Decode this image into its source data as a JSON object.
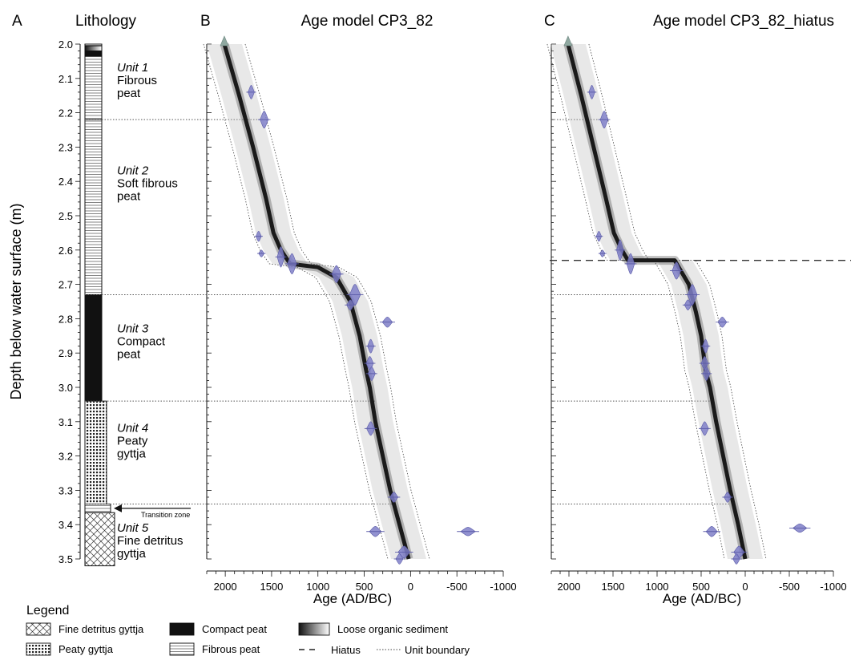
{
  "panel_letters": {
    "a": "A",
    "b": "B",
    "c": "C"
  },
  "lithology": {
    "title": "Lithology",
    "units": [
      {
        "name": "Unit 1",
        "desc": [
          "Fibrous",
          "peat"
        ],
        "label_depth": 2.08,
        "top": 2.0,
        "bottom": 2.22,
        "fill": "fibrous"
      },
      {
        "name": "Unit 2",
        "desc": [
          "Soft fibrous",
          "peat"
        ],
        "label_depth": 2.38,
        "top": 2.22,
        "bottom": 2.73,
        "fill": "fibrous"
      },
      {
        "name": "Unit 3",
        "desc": [
          "Compact",
          "peat"
        ],
        "label_depth": 2.84,
        "top": 2.73,
        "bottom": 3.04,
        "fill": "compact"
      },
      {
        "name": "Unit 4",
        "desc": [
          "Peaty",
          "gyttja"
        ],
        "label_depth": 3.13,
        "top": 3.04,
        "bottom": 3.34,
        "fill": "peaty"
      },
      {
        "name": "Unit 5",
        "desc": [
          "Fine detritus",
          "gyttja"
        ],
        "label_depth": 3.42,
        "top": 3.365,
        "bottom": 3.52,
        "fill": "fine"
      }
    ],
    "transition_zone": {
      "label": "Transition zone",
      "top": 3.34,
      "bottom": 3.365
    },
    "extra_layers": [
      {
        "top": 2.005,
        "bottom": 2.02,
        "fill": "loose"
      },
      {
        "top": 2.02,
        "bottom": 2.035,
        "fill": "compact"
      }
    ]
  },
  "legend": {
    "title": "Legend",
    "items": [
      {
        "label": "Fine detritus gyttja",
        "kind": "fine"
      },
      {
        "label": "Compact peat",
        "kind": "compact"
      },
      {
        "label": "Loose organic sediment",
        "kind": "loose"
      },
      {
        "label": "Peaty gyttja",
        "kind": "peaty"
      },
      {
        "label": "Fibrous peat",
        "kind": "fibrous"
      },
      {
        "label": "Hiatus",
        "kind": "hiatus"
      },
      {
        "label": "Unit boundary",
        "kind": "boundary"
      }
    ]
  },
  "colors": {
    "dates": "#7f7fc8",
    "dates_stroke": "#5b5ba8",
    "model": "#1a1a1a",
    "boundary": "#555555"
  },
  "chart_data": [
    {
      "type": "line",
      "title": "Age model CP3_82",
      "xlabel": "Age (AD/BC)",
      "ylabel": "Depth below water surface (m)",
      "xlim": [
        2200,
        -1000
      ],
      "ylim": [
        2.0,
        3.5
      ],
      "x_ticks": [
        2000,
        1500,
        1000,
        500,
        0,
        -500,
        -1000
      ],
      "x_tick_labels": [
        "2000",
        "1500",
        "1000",
        "500",
        "0",
        "-500",
        "-1000"
      ],
      "y_ticks": [
        2.0,
        2.1,
        2.2,
        2.3,
        2.4,
        2.5,
        2.6,
        2.7,
        2.8,
        2.9,
        3.0,
        3.1,
        3.2,
        3.3,
        3.4,
        3.5
      ],
      "y_tick_labels": [
        "2.0",
        "2.1",
        "2.2",
        "2.3",
        "2.4",
        "2.5",
        "2.6",
        "2.7",
        "2.8",
        "2.9",
        "3.0",
        "3.1",
        "3.2",
        "3.3",
        "3.4",
        "3.5"
      ],
      "unit_boundaries": [
        2.22,
        2.73,
        3.04,
        3.34
      ],
      "hiatus": null,
      "model_median": {
        "age": [
          2010,
          1850,
          1700,
          1560,
          1480,
          1400,
          1300,
          1000,
          800,
          650,
          550,
          480,
          440,
          380,
          300,
          220,
          120,
          20
        ],
        "depth": [
          2.0,
          2.15,
          2.3,
          2.45,
          2.55,
          2.6,
          2.64,
          2.65,
          2.68,
          2.75,
          2.85,
          2.95,
          3.0,
          3.1,
          3.2,
          3.3,
          3.4,
          3.5
        ]
      },
      "dates": [
        {
          "age": 1720,
          "depth": 2.14,
          "width": 70,
          "height": 0.04
        },
        {
          "age": 1580,
          "depth": 2.22,
          "width": 90,
          "height": 0.05
        },
        {
          "age": 1640,
          "depth": 2.56,
          "width": 60,
          "height": 0.03
        },
        {
          "age": 1610,
          "depth": 2.61,
          "width": 60,
          "height": 0.02
        },
        {
          "age": 1400,
          "depth": 2.62,
          "width": 80,
          "height": 0.06
        },
        {
          "age": 1280,
          "depth": 2.64,
          "width": 100,
          "height": 0.06
        },
        {
          "age": 800,
          "depth": 2.67,
          "width": 100,
          "height": 0.05
        },
        {
          "age": 600,
          "depth": 2.73,
          "width": 120,
          "height": 0.06
        },
        {
          "age": 650,
          "depth": 2.76,
          "width": 80,
          "height": 0.03
        },
        {
          "age": 250,
          "depth": 2.81,
          "width": 110,
          "height": 0.03
        },
        {
          "age": 430,
          "depth": 2.88,
          "width": 70,
          "height": 0.04
        },
        {
          "age": 440,
          "depth": 2.93,
          "width": 80,
          "height": 0.04
        },
        {
          "age": 420,
          "depth": 2.96,
          "width": 80,
          "height": 0.04
        },
        {
          "age": 430,
          "depth": 3.12,
          "width": 90,
          "height": 0.04
        },
        {
          "age": 180,
          "depth": 3.32,
          "width": 90,
          "height": 0.03
        },
        {
          "age": 380,
          "depth": 3.42,
          "width": 130,
          "height": 0.03
        },
        {
          "age": -620,
          "depth": 3.42,
          "width": 160,
          "height": 0.025
        },
        {
          "age": 70,
          "depth": 3.48,
          "width": 130,
          "height": 0.035
        },
        {
          "age": 120,
          "depth": 3.5,
          "width": 80,
          "height": 0.03
        }
      ]
    },
    {
      "type": "line",
      "title": "Age model CP3_82_hiatus",
      "xlabel": "Age (AD/BC)",
      "ylabel": "",
      "xlim": [
        2200,
        -1000
      ],
      "ylim": [
        2.0,
        3.5
      ],
      "x_ticks": [
        2000,
        1500,
        1000,
        500,
        0,
        -500,
        -1000
      ],
      "x_tick_labels": [
        "2000",
        "1500",
        "1000",
        "500",
        "0",
        "-500",
        "-1000"
      ],
      "y_ticks": [
        2.0,
        2.1,
        2.2,
        2.3,
        2.4,
        2.5,
        2.6,
        2.7,
        2.8,
        2.9,
        3.0,
        3.1,
        3.2,
        3.3,
        3.4,
        3.5
      ],
      "unit_boundaries": [
        2.22,
        2.73,
        3.04,
        3.34
      ],
      "hiatus": 2.63,
      "model_median": {
        "age": [
          2010,
          1860,
          1720,
          1580,
          1490,
          1400,
          1330,
          800,
          640,
          560,
          500,
          450,
          400,
          330,
          250,
          170,
          80,
          0
        ],
        "depth": [
          2.0,
          2.15,
          2.3,
          2.45,
          2.55,
          2.6,
          2.63,
          2.63,
          2.7,
          2.78,
          2.85,
          2.95,
          3.0,
          3.1,
          3.2,
          3.3,
          3.4,
          3.5
        ]
      },
      "dates": [
        {
          "age": 1740,
          "depth": 2.14,
          "width": 70,
          "height": 0.04
        },
        {
          "age": 1600,
          "depth": 2.22,
          "width": 90,
          "height": 0.05
        },
        {
          "age": 1660,
          "depth": 2.56,
          "width": 60,
          "height": 0.03
        },
        {
          "age": 1620,
          "depth": 2.61,
          "width": 60,
          "height": 0.02
        },
        {
          "age": 1420,
          "depth": 2.6,
          "width": 80,
          "height": 0.06
        },
        {
          "age": 1300,
          "depth": 2.64,
          "width": 90,
          "height": 0.06
        },
        {
          "age": 780,
          "depth": 2.66,
          "width": 100,
          "height": 0.05
        },
        {
          "age": 600,
          "depth": 2.73,
          "width": 110,
          "height": 0.06
        },
        {
          "age": 650,
          "depth": 2.76,
          "width": 80,
          "height": 0.03
        },
        {
          "age": 260,
          "depth": 2.81,
          "width": 100,
          "height": 0.03
        },
        {
          "age": 450,
          "depth": 2.88,
          "width": 70,
          "height": 0.04
        },
        {
          "age": 460,
          "depth": 2.93,
          "width": 80,
          "height": 0.04
        },
        {
          "age": 440,
          "depth": 2.96,
          "width": 80,
          "height": 0.04
        },
        {
          "age": 460,
          "depth": 3.12,
          "width": 90,
          "height": 0.04
        },
        {
          "age": 200,
          "depth": 3.32,
          "width": 80,
          "height": 0.03
        },
        {
          "age": 380,
          "depth": 3.42,
          "width": 130,
          "height": 0.03
        },
        {
          "age": -620,
          "depth": 3.41,
          "width": 160,
          "height": 0.025
        },
        {
          "age": 70,
          "depth": 3.48,
          "width": 120,
          "height": 0.035
        },
        {
          "age": 100,
          "depth": 3.5,
          "width": 80,
          "height": 0.03
        }
      ]
    }
  ]
}
